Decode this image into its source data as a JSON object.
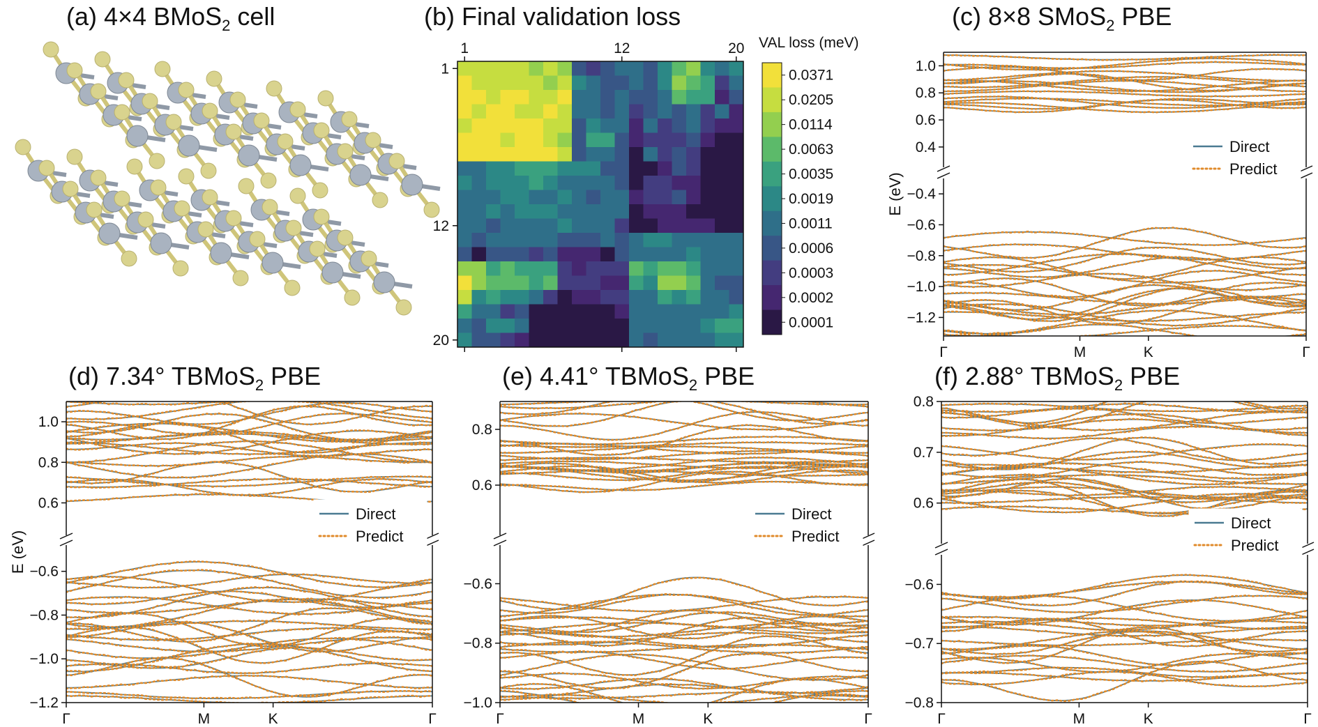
{
  "figure": {
    "panels": [
      {
        "label": "(a) 4×4 BMoS",
        "sub": "2",
        "tail": " cell"
      },
      {
        "label": "(b) Final validation loss",
        "sub": "",
        "tail": ""
      },
      {
        "label": "(c) 8×8 SMoS",
        "sub": "2",
        "tail": " PBE"
      },
      {
        "label": "(d) 7.34° TBMoS",
        "sub": "2",
        "tail": " PBE"
      },
      {
        "label": "(e) 4.41° TBMoS",
        "sub": "2",
        "tail": " PBE"
      },
      {
        "label": "(f) 2.88° TBMoS",
        "sub": "2",
        "tail": " PBE"
      }
    ],
    "atom_colors": {
      "mo": "#a9b3c0",
      "s": "#d9d38e",
      "bond_mo": "#8f99a6",
      "bond_s": "#cfc57a"
    }
  },
  "chart_data": [
    {
      "type": "heatmap",
      "title": "(b) Final validation loss",
      "x_ticks": [
        "1",
        "12",
        "20"
      ],
      "y_ticks": [
        "1",
        "12",
        "20"
      ],
      "colorbar_label": "VAL loss (meV)",
      "colorbar_ticks": [
        "0.0371",
        "0.0205",
        "0.0114",
        "0.0063",
        "0.0035",
        "0.0019",
        "0.0011",
        "0.0006",
        "0.0003",
        "0.0002",
        "0.0001"
      ],
      "colorbar_colors": [
        "#f2e03a",
        "#c6dd40",
        "#93cf4f",
        "#5cba6a",
        "#3aa17f",
        "#2c8886",
        "#2f6f89",
        "#385686",
        "#433d80",
        "#452770",
        "#2a1845"
      ],
      "matrix": [
        [
          1,
          1,
          1,
          1,
          1,
          2,
          1,
          2,
          7,
          8,
          7,
          6,
          6,
          7,
          5,
          3,
          2,
          5,
          6,
          5
        ],
        [
          0,
          1,
          1,
          1,
          1,
          1,
          2,
          1,
          5,
          6,
          7,
          7,
          6,
          7,
          5,
          2,
          3,
          4,
          8,
          6
        ],
        [
          0,
          0,
          1,
          0,
          0,
          1,
          1,
          0,
          6,
          6,
          7,
          6,
          7,
          7,
          6,
          3,
          4,
          4,
          9,
          7
        ],
        [
          0,
          1,
          0,
          0,
          1,
          1,
          0,
          1,
          6,
          6,
          7,
          6,
          8,
          7,
          6,
          7,
          6,
          8,
          6,
          9
        ],
        [
          1,
          0,
          0,
          0,
          0,
          0,
          1,
          1,
          7,
          5,
          6,
          6,
          9,
          6,
          8,
          7,
          6,
          8,
          9,
          9
        ],
        [
          0,
          0,
          0,
          1,
          0,
          0,
          1,
          2,
          7,
          4,
          4,
          7,
          9,
          8,
          8,
          8,
          7,
          9,
          10,
          10
        ],
        [
          0,
          0,
          0,
          0,
          0,
          0,
          0,
          1,
          7,
          6,
          6,
          7,
          10,
          6,
          8,
          7,
          8,
          10,
          10,
          10
        ],
        [
          6,
          6,
          5,
          5,
          4,
          4,
          4,
          5,
          5,
          5,
          7,
          7,
          10,
          10,
          9,
          7,
          8,
          10,
          10,
          10
        ],
        [
          5,
          6,
          5,
          5,
          5,
          4,
          5,
          6,
          6,
          6,
          6,
          7,
          10,
          8,
          8,
          9,
          9,
          10,
          10,
          10
        ],
        [
          6,
          6,
          6,
          5,
          5,
          6,
          6,
          5,
          6,
          7,
          6,
          6,
          9,
          8,
          8,
          7,
          9,
          10,
          10,
          10
        ],
        [
          6,
          6,
          5,
          6,
          5,
          5,
          5,
          6,
          6,
          6,
          6,
          6,
          10,
          9,
          9,
          9,
          10,
          10,
          10,
          10
        ],
        [
          6,
          6,
          7,
          6,
          6,
          6,
          6,
          5,
          6,
          6,
          6,
          8,
          10,
          10,
          9,
          9,
          9,
          9,
          10,
          10
        ],
        [
          6,
          7,
          6,
          6,
          6,
          6,
          6,
          7,
          7,
          7,
          6,
          7,
          6,
          5,
          5,
          6,
          6,
          6,
          6,
          6
        ],
        [
          7,
          10,
          7,
          7,
          7,
          8,
          7,
          9,
          9,
          9,
          10,
          7,
          6,
          6,
          6,
          6,
          5,
          6,
          6,
          6
        ],
        [
          2,
          2,
          4,
          3,
          4,
          4,
          4,
          8,
          9,
          8,
          8,
          8,
          3,
          4,
          3,
          3,
          4,
          6,
          6,
          6
        ],
        [
          0,
          2,
          3,
          3,
          3,
          4,
          3,
          8,
          8,
          8,
          9,
          9,
          4,
          5,
          2,
          2,
          3,
          6,
          7,
          7
        ],
        [
          1,
          5,
          4,
          5,
          5,
          6,
          8,
          10,
          9,
          9,
          8,
          8,
          6,
          6,
          4,
          5,
          4,
          6,
          6,
          7
        ],
        [
          4,
          6,
          6,
          8,
          7,
          10,
          10,
          10,
          10,
          10,
          10,
          9,
          6,
          6,
          6,
          6,
          6,
          6,
          6,
          5
        ],
        [
          6,
          7,
          5,
          5,
          6,
          10,
          10,
          10,
          10,
          10,
          10,
          10,
          6,
          6,
          6,
          6,
          6,
          5,
          4,
          4
        ],
        [
          5,
          7,
          7,
          8,
          9,
          10,
          10,
          10,
          10,
          10,
          10,
          10,
          6,
          7,
          6,
          6,
          6,
          6,
          5,
          5
        ]
      ]
    },
    {
      "type": "line",
      "title": "(c) 8×8 SMoS2 PBE",
      "x_ticks": [
        "Γ",
        "M",
        "K",
        "Γ"
      ],
      "ylabel": "E (eV)",
      "upper": {
        "ylim": [
          0.25,
          1.1
        ],
        "ticks": [
          0.4,
          0.6,
          0.8,
          1.0
        ],
        "tick_labels": [
          "0.4",
          "0.6",
          "0.8",
          "1.0"
        ],
        "band_range": [
          0.6,
          1.08
        ]
      },
      "lower": {
        "ylim": [
          -1.32,
          -0.3
        ],
        "ticks": [
          -0.4,
          -0.6,
          -0.8,
          -1.0,
          -1.2
        ],
        "tick_labels": [
          "−0.4",
          "−0.6",
          "−0.8",
          "−1.0",
          "−1.2"
        ],
        "band_range": [
          -1.32,
          -0.66
        ]
      },
      "legend": {
        "direct": "Direct",
        "predict": "Predict",
        "position": "right-middle"
      },
      "series_colors": {
        "direct": "#4a7a91",
        "predict": "#e08a2a"
      }
    },
    {
      "type": "line",
      "title": "(d) 7.34° TBMoS2 PBE",
      "x_ticks": [
        "Γ",
        "M",
        "K",
        "Γ"
      ],
      "ylabel": "E (eV)",
      "upper": {
        "ylim": [
          0.44,
          1.1
        ],
        "ticks": [
          0.6,
          0.8,
          1.0
        ],
        "tick_labels": [
          "0.6",
          "0.8",
          "1.0"
        ],
        "band_range": [
          0.57,
          1.1
        ]
      },
      "lower": {
        "ylim": [
          -1.2,
          -0.48
        ],
        "ticks": [
          -0.6,
          -0.8,
          -1.0,
          -1.2
        ],
        "tick_labels": [
          "−0.6",
          "−0.8",
          "−1.0",
          "−1.2"
        ],
        "band_range": [
          -1.2,
          -0.6
        ]
      },
      "legend": {
        "direct": "Direct",
        "predict": "Predict",
        "position": "right-middle"
      },
      "series_colors": {
        "direct": "#4a7a91",
        "predict": "#e08a2a"
      }
    },
    {
      "type": "line",
      "title": "(e) 4.41° TBMoS2 PBE",
      "x_ticks": [
        "Γ",
        "M",
        "K",
        "Γ"
      ],
      "ylabel": "",
      "upper": {
        "ylim": [
          0.42,
          0.9
        ],
        "ticks": [
          0.6,
          0.8
        ],
        "tick_labels": [
          "0.6",
          "0.8"
        ],
        "band_range": [
          0.59,
          0.9
        ]
      },
      "lower": {
        "ylim": [
          -1.0,
          -0.47
        ],
        "ticks": [
          -0.6,
          -0.8,
          -1.0
        ],
        "tick_labels": [
          "−0.6",
          "−0.8",
          "−1.0"
        ],
        "band_range": [
          -1.0,
          -0.6
        ]
      },
      "legend": {
        "direct": "Direct",
        "predict": "Predict",
        "position": "right-middle"
      },
      "series_colors": {
        "direct": "#4a7a91",
        "predict": "#e08a2a"
      }
    },
    {
      "type": "line",
      "title": "(f) 2.88° TBMoS2 PBE",
      "x_ticks": [
        "Γ",
        "M",
        "K",
        "Γ"
      ],
      "ylabel": "",
      "upper": {
        "ylim": [
          0.52,
          0.8
        ],
        "ticks": [
          0.6,
          0.7,
          0.8
        ],
        "tick_labels": [
          "0.6",
          "0.7",
          "0.8"
        ],
        "band_range": [
          0.58,
          0.8
        ]
      },
      "lower": {
        "ylim": [
          -0.8,
          -0.55
        ],
        "ticks": [
          -0.6,
          -0.7,
          -0.8
        ],
        "tick_labels": [
          "−0.6",
          "−0.7",
          "−0.8"
        ],
        "band_range": [
          -0.8,
          -0.61
        ]
      },
      "legend": {
        "direct": "Direct",
        "predict": "Predict",
        "position": "right-middle"
      },
      "series_colors": {
        "direct": "#4a7a91",
        "predict": "#e08a2a"
      }
    }
  ]
}
